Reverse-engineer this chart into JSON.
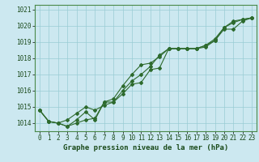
{
  "title": "Graphe pression niveau de la mer (hPa)",
  "bg_color": "#cce8f0",
  "grid_color": "#99ccd4",
  "line_color": "#2d6a2d",
  "x_ticks": [
    0,
    1,
    2,
    3,
    4,
    5,
    6,
    7,
    8,
    9,
    10,
    11,
    12,
    13,
    14,
    15,
    16,
    17,
    18,
    19,
    20,
    21,
    22,
    23
  ],
  "y_ticks": [
    1014,
    1015,
    1016,
    1017,
    1018,
    1019,
    1020,
    1021
  ],
  "ylim": [
    1013.5,
    1021.3
  ],
  "xlim": [
    -0.5,
    23.5
  ],
  "line1": [
    1014.8,
    1014.1,
    1014.0,
    1013.8,
    1014.2,
    1014.7,
    1014.2,
    1015.3,
    1015.5,
    1016.3,
    1017.0,
    1017.6,
    1017.7,
    1018.1,
    1018.6,
    1018.6,
    1018.6,
    1018.6,
    1018.7,
    1019.1,
    1019.9,
    1020.3,
    1020.4,
    1020.5
  ],
  "line2": [
    1014.8,
    1014.1,
    1014.0,
    1014.2,
    1014.6,
    1015.0,
    1014.8,
    1015.1,
    1015.3,
    1015.8,
    1016.4,
    1016.5,
    1017.3,
    1017.4,
    1018.6,
    1018.6,
    1018.6,
    1018.6,
    1018.8,
    1019.1,
    1019.8,
    1019.8,
    1020.3,
    1020.5
  ],
  "line3": [
    1014.8,
    1014.1,
    1014.0,
    1013.8,
    1014.0,
    1014.2,
    1014.3,
    1015.3,
    1015.3,
    1016.0,
    1016.6,
    1017.0,
    1017.5,
    1018.2,
    1018.6,
    1018.6,
    1018.6,
    1018.6,
    1018.8,
    1019.2,
    1019.9,
    1020.2,
    1020.4,
    1020.5
  ],
  "tick_fontsize": 5.5,
  "title_fontsize": 6.5
}
